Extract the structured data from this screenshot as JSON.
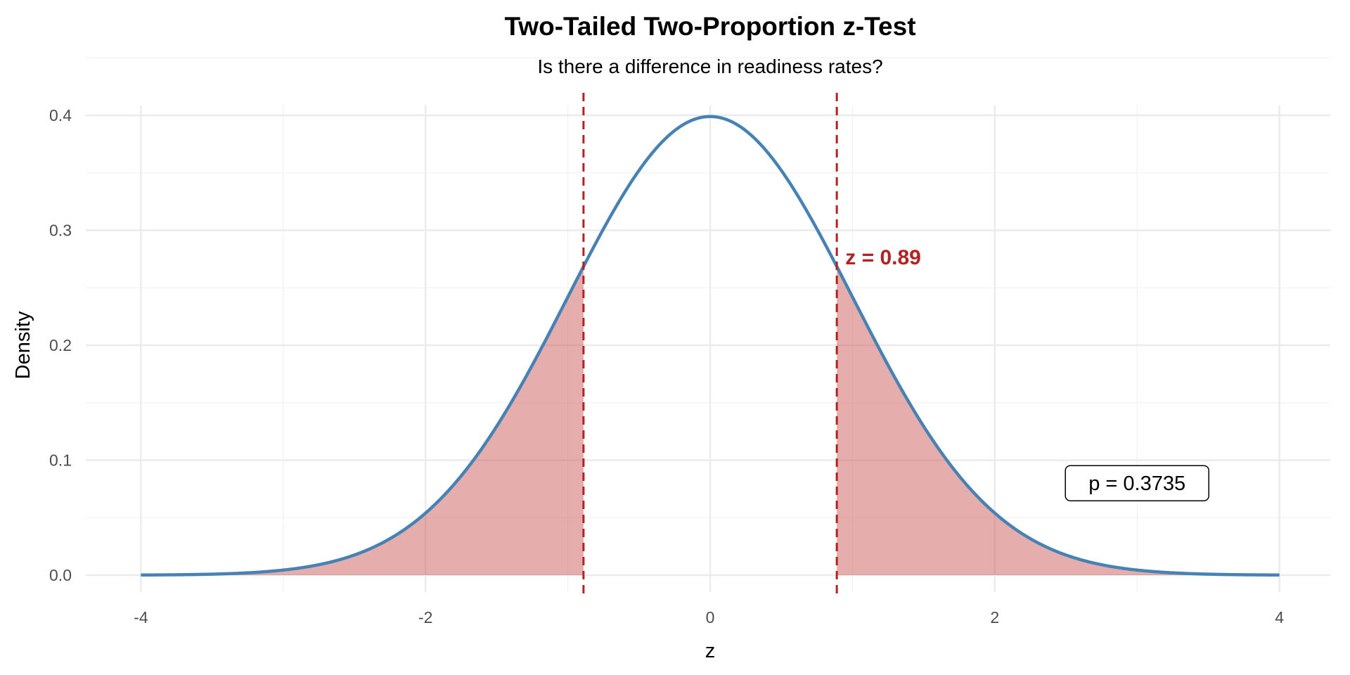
{
  "chart_data": {
    "type": "area",
    "title": "Two-Tailed Two-Proportion z-Test",
    "subtitle": "Is there a difference in readiness rates?",
    "xlabel": "z",
    "ylabel": "Density",
    "xlim": [
      -4,
      4
    ],
    "ylim": [
      0,
      0.4
    ],
    "x_ticks": [
      -4,
      -2,
      0,
      2,
      4
    ],
    "x_tick_labels": [
      "-4",
      "-2",
      "0",
      "2",
      "4"
    ],
    "y_ticks": [
      0,
      0.1,
      0.2,
      0.3,
      0.4
    ],
    "y_tick_labels": [
      "0.0",
      "0.1",
      "0.2",
      "0.3",
      "0.4"
    ],
    "grid": true,
    "curve": {
      "name": "Standard normal density",
      "mean": 0,
      "sd": 1,
      "color": "#4682B4"
    },
    "z_statistic": 0.89,
    "critical_lines": [
      -0.89,
      0.89
    ],
    "line_color": "#B22222",
    "shaded_regions": [
      {
        "from": -4,
        "to": -0.89
      },
      {
        "from": 0.89,
        "to": 4
      }
    ],
    "shade_color": "#CD5C5C",
    "annotations": {
      "z_label": "z = 0.89",
      "z_label_pos": {
        "x": 0.95,
        "y": 0.277
      },
      "p_label": "p = 0.3735",
      "p_label_pos": {
        "x": 3,
        "y": 0.08
      }
    },
    "p_value": 0.3735
  }
}
